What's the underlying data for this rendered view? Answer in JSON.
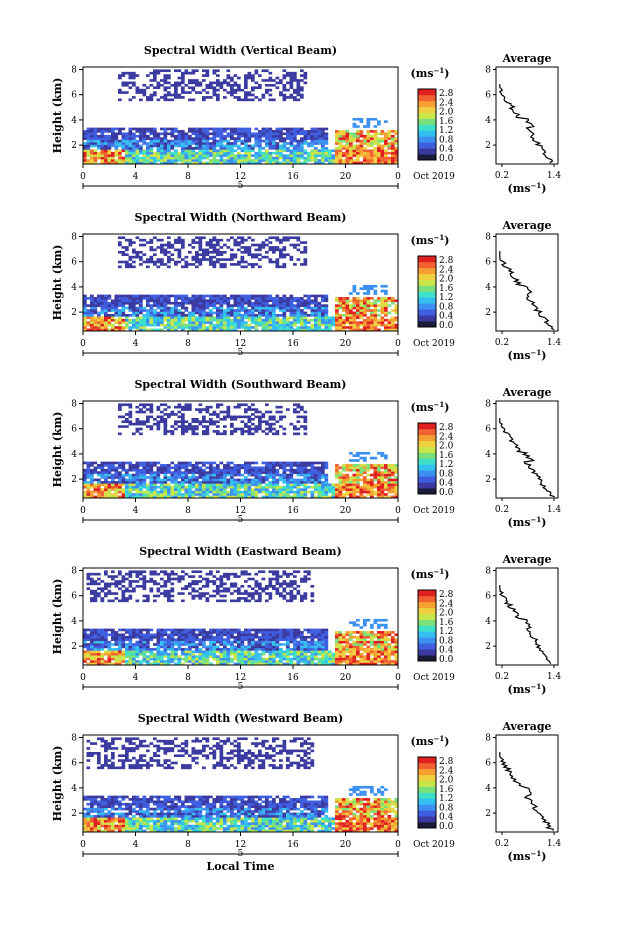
{
  "chart_data": [
    {
      "type": "heatmap",
      "title": "Spectral Width (Vertical Beam)",
      "ylabel": "Height (km)",
      "x_ticks": [
        "0",
        "4",
        "8",
        "12",
        "16",
        "20",
        "0"
      ],
      "y_ticks": [
        "2",
        "4",
        "6",
        "8"
      ],
      "date_marker": "5",
      "date_label": "Oct 2019",
      "colorbar": {
        "unit": "(ms",
        "unit_exp": "−1",
        "unit_close": ")",
        "ticks": [
          "2.8",
          "2.4",
          "2.0",
          "1.6",
          "1.2",
          "0.8",
          "0.4",
          "0.0"
        ]
      },
      "average": {
        "title": "Average",
        "y_ticks": [
          "2",
          "4",
          "6",
          "8"
        ],
        "x_ticks": [
          "0.2",
          "1.4"
        ],
        "xlabel": "(ms",
        "xlabel_exp": "−1",
        "xlabel_close": ")"
      }
    },
    {
      "type": "heatmap",
      "title": "Spectral Width (Northward Beam)",
      "ylabel": "Height (km)",
      "x_ticks": [
        "0",
        "4",
        "8",
        "12",
        "16",
        "20",
        "0"
      ],
      "y_ticks": [
        "2",
        "4",
        "6",
        "8"
      ],
      "date_marker": "5",
      "date_label": "Oct 2019",
      "colorbar": {
        "unit": "(ms",
        "unit_exp": "−1",
        "unit_close": ")",
        "ticks": [
          "2.8",
          "2.4",
          "2.0",
          "1.6",
          "1.2",
          "0.8",
          "0.4",
          "0.0"
        ]
      },
      "average": {
        "title": "Average",
        "y_ticks": [
          "2",
          "4",
          "6",
          "8"
        ],
        "x_ticks": [
          "0.2",
          "1.4"
        ],
        "xlabel": "(ms",
        "xlabel_exp": "−1",
        "xlabel_close": ")"
      }
    },
    {
      "type": "heatmap",
      "title": "Spectral Width (Southward Beam)",
      "ylabel": "Height (km)",
      "x_ticks": [
        "0",
        "4",
        "8",
        "12",
        "16",
        "20",
        "0"
      ],
      "y_ticks": [
        "2",
        "4",
        "6",
        "8"
      ],
      "date_marker": "5",
      "date_label": "Oct 2019",
      "colorbar": {
        "unit": "(ms",
        "unit_exp": "−1",
        "unit_close": ")",
        "ticks": [
          "2.8",
          "2.4",
          "2.0",
          "1.6",
          "1.2",
          "0.8",
          "0.4",
          "0.0"
        ]
      },
      "average": {
        "title": "Average",
        "y_ticks": [
          "2",
          "4",
          "6",
          "8"
        ],
        "x_ticks": [
          "0.2",
          "1.4"
        ],
        "xlabel": "(ms",
        "xlabel_exp": "−1",
        "xlabel_close": ")"
      }
    },
    {
      "type": "heatmap",
      "title": "Spectral Width (Eastward Beam)",
      "ylabel": "Height (km)",
      "x_ticks": [
        "0",
        "4",
        "8",
        "12",
        "16",
        "20",
        "0"
      ],
      "y_ticks": [
        "2",
        "4",
        "6",
        "8"
      ],
      "date_marker": "5",
      "date_label": "Oct 2019",
      "colorbar": {
        "unit": "(ms",
        "unit_exp": "−1",
        "unit_close": ")",
        "ticks": [
          "2.8",
          "2.4",
          "2.0",
          "1.6",
          "1.2",
          "0.8",
          "0.4",
          "0.0"
        ]
      },
      "average": {
        "title": "Average",
        "y_ticks": [
          "2",
          "4",
          "6",
          "8"
        ],
        "x_ticks": [
          "0.2",
          "1.4"
        ],
        "xlabel": "(ms",
        "xlabel_exp": "−1",
        "xlabel_close": ")"
      }
    },
    {
      "type": "heatmap",
      "title": "Spectral Width (Westward Beam)",
      "ylabel": "Height (km)",
      "x_ticks": [
        "0",
        "4",
        "8",
        "12",
        "16",
        "20",
        "0"
      ],
      "y_ticks": [
        "2",
        "4",
        "6",
        "8"
      ],
      "date_marker": "5",
      "date_label": "Oct 2019",
      "xlabel": "Local Time",
      "colorbar": {
        "unit": "(ms",
        "unit_exp": "−1",
        "unit_close": ")",
        "ticks": [
          "2.8",
          "2.4",
          "2.0",
          "1.6",
          "1.2",
          "0.8",
          "0.4",
          "0.0"
        ]
      },
      "average": {
        "title": "Average",
        "y_ticks": [
          "2",
          "4",
          "6",
          "8"
        ],
        "x_ticks": [
          "0.2",
          "1.4"
        ],
        "xlabel": "(ms",
        "xlabel_exp": "−1",
        "xlabel_close": ")"
      }
    }
  ],
  "colors": {
    "palette": [
      "#1a1a3a",
      "#3a3aa0",
      "#3f5fe0",
      "#3c90f0",
      "#33c0f0",
      "#3ee0c8",
      "#7ae07a",
      "#c8e64a",
      "#f0d040",
      "#f5a030",
      "#f06030",
      "#e02020"
    ]
  }
}
